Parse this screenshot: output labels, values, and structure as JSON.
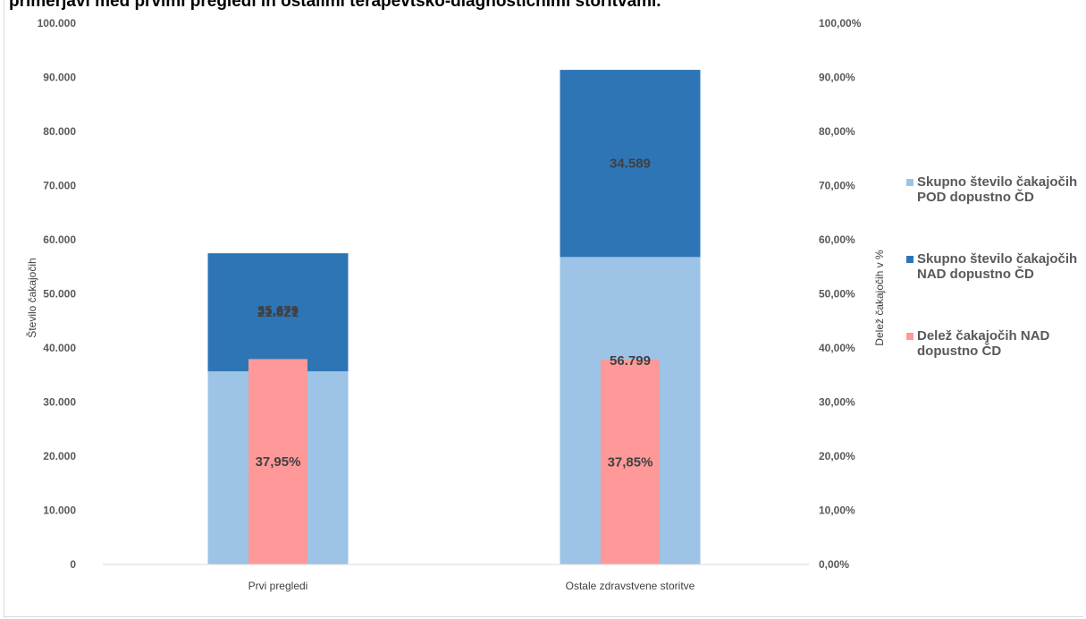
{
  "chart_data": {
    "type": "bar",
    "title": "primerjavi med prvimi pregledi in ostalimi terapevtsko-diagnostičnimi storitvami.",
    "ylabel": "Število čakajočih",
    "y2label": "Delež čakajočih v %",
    "xlabel": "",
    "categories": [
      "Prvi pregledi",
      "Ostale zdravstvene storitve"
    ],
    "ylim": [
      0,
      100000
    ],
    "y2lim": [
      0,
      100
    ],
    "y_ticks": [
      "0",
      "10.000",
      "20.000",
      "30.000",
      "40.000",
      "50.000",
      "60.000",
      "70.000",
      "80.000",
      "90.000",
      "100.000"
    ],
    "y2_ticks": [
      "0,00%",
      "10,00%",
      "20,00%",
      "30,00%",
      "40,00%",
      "50,00%",
      "60,00%",
      "70,00%",
      "80,00%",
      "90,00%",
      "100,00%"
    ],
    "series": [
      {
        "name": "Skupno število čakajočih POD dopustno ČD",
        "legend_lines": [
          "Skupno število čakajočih",
          "POD dopustno ČD"
        ],
        "values": [
          35679,
          56799
        ],
        "labels": [
          "35.679",
          "56.799"
        ],
        "color": "#9dc3e6",
        "axis": "left"
      },
      {
        "name": "Skupno število čakajočih NAD dopustno ČD",
        "legend_lines": [
          "Skupno število čakajočih",
          "NAD dopustno ČD"
        ],
        "values": [
          21821,
          34589
        ],
        "labels": [
          "21.821",
          "34.589"
        ],
        "color": "#2e75b6",
        "axis": "left"
      },
      {
        "name": "Delež čakajočih NAD dopustno ČD",
        "legend_lines": [
          "Delež čakajočih NAD",
          "dopustno ČD"
        ],
        "values": [
          37.95,
          37.85
        ],
        "labels": [
          "37,95%",
          "37,85%"
        ],
        "color": "#ff9999",
        "axis": "right"
      }
    ],
    "grid": false,
    "legend_position": "right"
  }
}
